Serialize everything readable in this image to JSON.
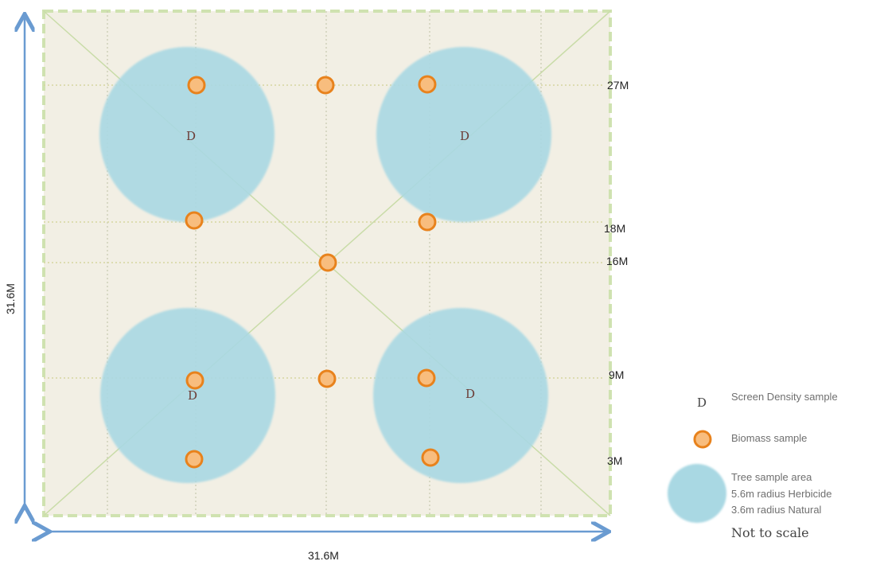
{
  "plot": {
    "width_label": "31.6M",
    "height_label": "31.6M",
    "row_labels": [
      "27M",
      "18M",
      "16M",
      "9M",
      "3M"
    ],
    "density_marker": "D"
  },
  "legend": {
    "density_symbol": "D",
    "density_label": "Screen Density sample",
    "biomass_label": "Biomass sample",
    "tree_area_lines": [
      "Tree sample area",
      "5.6m radius Herbicide",
      "3.6m radius Natural"
    ],
    "note": "Not to scale"
  },
  "colors": {
    "plot_fill": "#f2efe4",
    "plot_border": "#cfe2b0",
    "tree_area": "#a9d8e3",
    "biomass_fill": "#f8bd7e",
    "biomass_stroke": "#e8821c",
    "arrow": "#6a9bd1"
  }
}
